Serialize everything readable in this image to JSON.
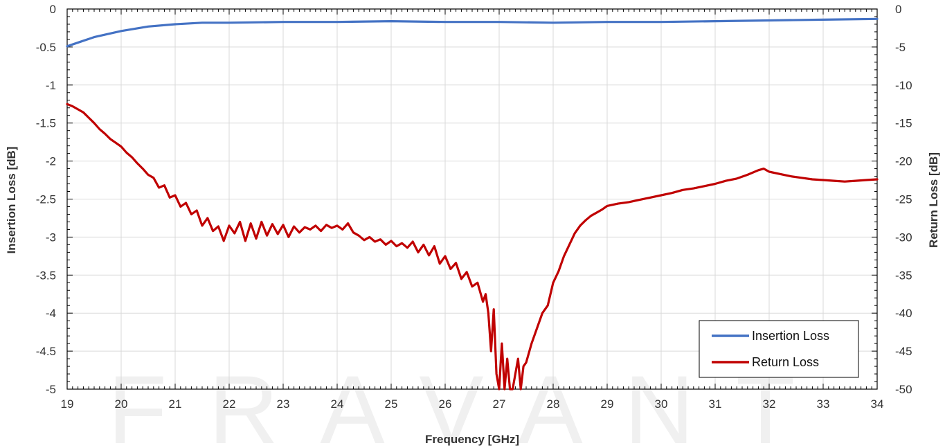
{
  "chart_data": {
    "type": "line",
    "xlabel": "Frequency [GHz]",
    "ylabel_left": "Insertion Loss [dB]",
    "ylabel_right": "Return Loss [dB]",
    "xlim": [
      19,
      34
    ],
    "ylim_left": [
      -5,
      0
    ],
    "ylim_right": [
      -50,
      0
    ],
    "x_ticks": [
      "19",
      "20",
      "21",
      "22",
      "23",
      "24",
      "25",
      "26",
      "27",
      "28",
      "29",
      "30",
      "31",
      "32",
      "33",
      "34"
    ],
    "y_left_ticks": [
      "0",
      "-0.5",
      "-1",
      "-1.5",
      "-2",
      "-2.5",
      "-3",
      "-3.5",
      "-4",
      "-4.5",
      "-5"
    ],
    "y_right_ticks": [
      "0",
      "-5",
      "-10",
      "-15",
      "-20",
      "-25",
      "-30",
      "-35",
      "-40",
      "-45",
      "-50"
    ],
    "grid": true,
    "legend_position": "bottom-right",
    "watermark": "FRAVANT",
    "series": [
      {
        "name": "Insertion Loss",
        "axis": "left",
        "color": "#4472c4",
        "x": [
          19.0,
          19.25,
          19.5,
          19.75,
          20.0,
          20.5,
          21.0,
          21.5,
          22.0,
          23.0,
          24.0,
          25.0,
          26.0,
          27.0,
          28.0,
          29.0,
          30.0,
          31.0,
          32.0,
          33.0,
          34.0
        ],
        "y": [
          -0.49,
          -0.43,
          -0.37,
          -0.33,
          -0.29,
          -0.23,
          -0.2,
          -0.18,
          -0.18,
          -0.17,
          -0.17,
          -0.16,
          -0.17,
          -0.17,
          -0.18,
          -0.17,
          -0.17,
          -0.16,
          -0.15,
          -0.14,
          -0.13
        ]
      },
      {
        "name": "Return Loss",
        "axis": "right",
        "color": "#c00000",
        "x": [
          19.0,
          19.1,
          19.2,
          19.3,
          19.4,
          19.5,
          19.6,
          19.7,
          19.8,
          19.9,
          20.0,
          20.1,
          20.2,
          20.3,
          20.4,
          20.5,
          20.6,
          20.7,
          20.8,
          20.9,
          21.0,
          21.1,
          21.2,
          21.3,
          21.4,
          21.5,
          21.6,
          21.7,
          21.8,
          21.9,
          22.0,
          22.1,
          22.2,
          22.3,
          22.4,
          22.5,
          22.6,
          22.7,
          22.8,
          22.9,
          23.0,
          23.1,
          23.2,
          23.3,
          23.4,
          23.5,
          23.6,
          23.7,
          23.8,
          23.9,
          24.0,
          24.1,
          24.2,
          24.3,
          24.4,
          24.5,
          24.6,
          24.7,
          24.8,
          24.9,
          25.0,
          25.1,
          25.2,
          25.3,
          25.4,
          25.5,
          25.6,
          25.7,
          25.8,
          25.9,
          26.0,
          26.1,
          26.2,
          26.3,
          26.4,
          26.5,
          26.6,
          26.7,
          26.75,
          26.8,
          26.85,
          26.9,
          26.95,
          27.0,
          27.05,
          27.1,
          27.15,
          27.2,
          27.25,
          27.3,
          27.35,
          27.4,
          27.45,
          27.5,
          27.6,
          27.7,
          27.8,
          27.9,
          28.0,
          28.1,
          28.2,
          28.3,
          28.4,
          28.5,
          28.6,
          28.7,
          28.8,
          28.9,
          29.0,
          29.2,
          29.4,
          29.6,
          29.8,
          30.0,
          30.2,
          30.4,
          30.6,
          30.8,
          31.0,
          31.2,
          31.4,
          31.6,
          31.8,
          31.9,
          32.0,
          32.2,
          32.4,
          32.6,
          32.8,
          33.0,
          33.2,
          33.4,
          33.6,
          33.8,
          34.0
        ],
        "y": [
          -12.5,
          -12.8,
          -13.2,
          -13.6,
          -14.3,
          -15.0,
          -15.8,
          -16.4,
          -17.1,
          -17.6,
          -18.1,
          -18.9,
          -19.5,
          -20.3,
          -21.0,
          -21.8,
          -22.2,
          -23.5,
          -23.2,
          -24.8,
          -24.5,
          -26.0,
          -25.5,
          -27.0,
          -26.5,
          -28.5,
          -27.5,
          -29.2,
          -28.6,
          -30.5,
          -28.5,
          -29.5,
          -28.0,
          -30.5,
          -28.2,
          -30.2,
          -28.0,
          -29.8,
          -28.3,
          -29.6,
          -28.4,
          -30.0,
          -28.6,
          -29.4,
          -28.7,
          -29.0,
          -28.5,
          -29.2,
          -28.4,
          -28.8,
          -28.5,
          -29.0,
          -28.2,
          -29.4,
          -29.8,
          -30.4,
          -30.0,
          -30.6,
          -30.3,
          -31.0,
          -30.5,
          -31.2,
          -30.8,
          -31.4,
          -30.6,
          -32.0,
          -31.0,
          -32.4,
          -31.2,
          -33.5,
          -32.5,
          -34.2,
          -33.4,
          -35.5,
          -34.6,
          -36.5,
          -36.0,
          -38.5,
          -37.5,
          -40.0,
          -45.0,
          -39.5,
          -48.0,
          -50.0,
          -44.0,
          -50.0,
          -46.0,
          -50.0,
          -50.0,
          -48.0,
          -46.0,
          -50.0,
          -47.0,
          -46.5,
          -44.0,
          -42.0,
          -40.0,
          -39.0,
          -36.0,
          -34.5,
          -32.5,
          -31.0,
          -29.5,
          -28.5,
          -27.8,
          -27.2,
          -26.8,
          -26.4,
          -25.9,
          -25.6,
          -25.4,
          -25.1,
          -24.8,
          -24.5,
          -24.2,
          -23.8,
          -23.6,
          -23.3,
          -23.0,
          -22.6,
          -22.3,
          -21.8,
          -21.2,
          -21.0,
          -21.4,
          -21.7,
          -22.0,
          -22.2,
          -22.4,
          -22.5,
          -22.6,
          -22.7,
          -22.6,
          -22.5,
          -22.4
        ]
      }
    ]
  }
}
